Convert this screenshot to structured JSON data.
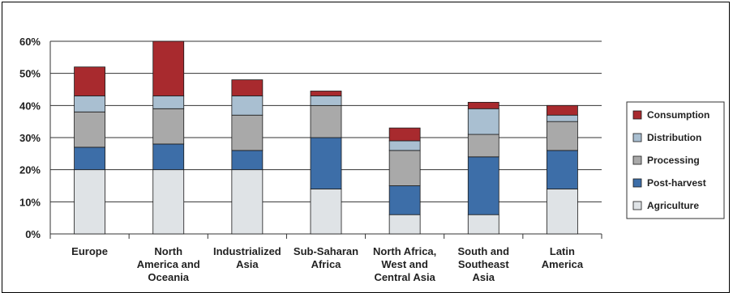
{
  "chart_data": {
    "type": "bar",
    "stacked": true,
    "categories": [
      [
        "Europe"
      ],
      [
        "North",
        "America and",
        "Oceania"
      ],
      [
        "Industrialized",
        "Asia"
      ],
      [
        "Sub-Saharan",
        "Africa"
      ],
      [
        "North Africa,",
        "West and",
        "Central Asia"
      ],
      [
        "South and",
        "Southeast",
        "Asia"
      ],
      [
        "Latin",
        "America"
      ]
    ],
    "ylim": [
      0,
      60
    ],
    "yticks": [
      0,
      10,
      20,
      30,
      40,
      50,
      60
    ],
    "ytick_labels": [
      "0%",
      "10%",
      "20%",
      "30%",
      "40%",
      "50%",
      "60%"
    ],
    "grid": true,
    "legend_position": "right",
    "series": [
      {
        "name": "Agriculture",
        "color": "#dfe3e6",
        "values": [
          20,
          20,
          20,
          14,
          6,
          6,
          14
        ]
      },
      {
        "name": "Post-harvest",
        "color": "#3d6ea8",
        "values": [
          7,
          8,
          6,
          16,
          9,
          18,
          12
        ]
      },
      {
        "name": "Processing",
        "color": "#a9a9a9",
        "values": [
          11,
          11,
          11,
          10,
          11,
          7,
          9
        ]
      },
      {
        "name": "Distribution",
        "color": "#a9bfd1",
        "values": [
          5,
          4,
          6,
          3,
          3,
          8,
          2
        ]
      },
      {
        "name": "Consumption",
        "color": "#a82a2e",
        "values": [
          9,
          17,
          5,
          1.5,
          4,
          2,
          3
        ]
      }
    ],
    "legend_order": [
      "Consumption",
      "Distribution",
      "Processing",
      "Post-harvest",
      "Agriculture"
    ]
  }
}
